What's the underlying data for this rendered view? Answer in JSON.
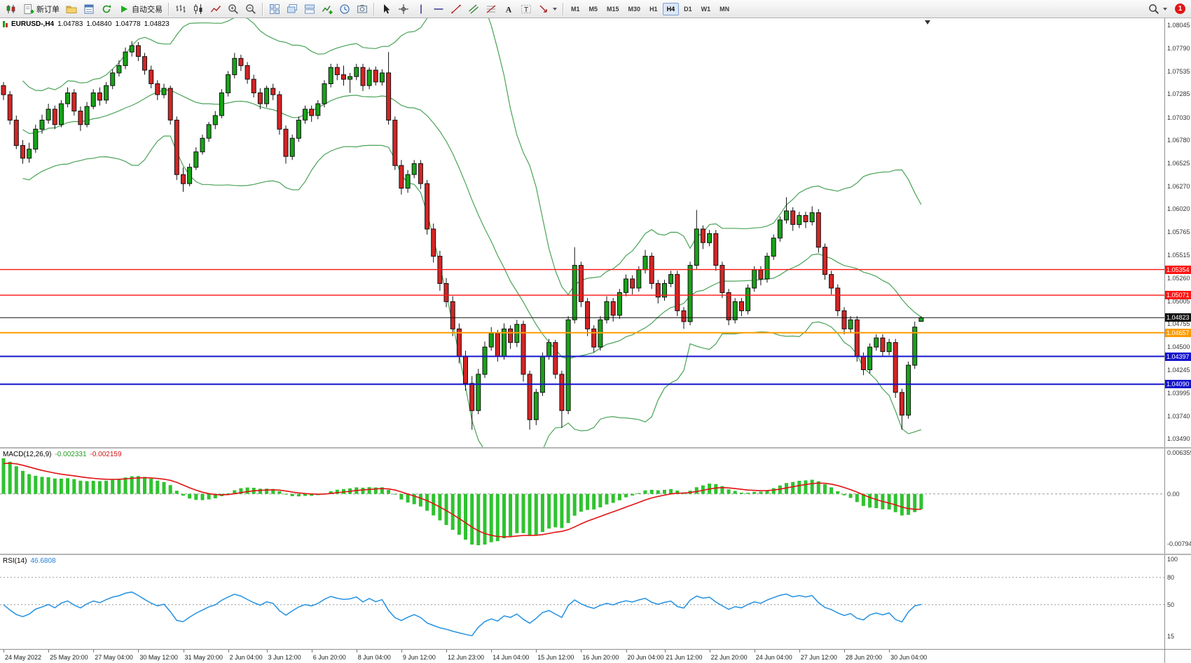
{
  "toolbar": {
    "file_group": [
      {
        "name": "new-chart-button",
        "icon": "chart-candles"
      },
      {
        "name": "new-order-button",
        "icon": "new-order",
        "label": "新订单"
      },
      {
        "name": "profiles-button",
        "icon": "profiles"
      },
      {
        "name": "data-window-button",
        "icon": "data-window"
      },
      {
        "name": "refresh-button",
        "icon": "refresh"
      },
      {
        "name": "auto-trading-button",
        "icon": "play",
        "label": "自动交易"
      }
    ],
    "chart_group": [
      {
        "name": "bar-chart-mode-button",
        "icon": "bar-chart"
      },
      {
        "name": "candlestick-mode-button",
        "icon": "candles"
      },
      {
        "name": "line-chart-mode-button",
        "icon": "line-chart"
      },
      {
        "name": "zoom-in-button",
        "icon": "zoom-in"
      },
      {
        "name": "zoom-out-button",
        "icon": "zoom-out"
      }
    ],
    "window_group": [
      {
        "name": "tile-windows-button",
        "icon": "tile"
      },
      {
        "name": "cascade-windows-button",
        "icon": "cascade"
      },
      {
        "name": "arrange-windows-button",
        "icon": "arrange"
      },
      {
        "name": "add-indicator-button",
        "icon": "add-indicator"
      },
      {
        "name": "time-periods-button",
        "icon": "clock"
      },
      {
        "name": "snapshot-button",
        "icon": "snapshot"
      }
    ],
    "tools_group": [
      {
        "name": "cursor-tool-button",
        "icon": "cursor"
      },
      {
        "name": "crosshair-tool-button",
        "icon": "crosshair"
      },
      {
        "name": "vertical-line-tool-button",
        "icon": "vline"
      },
      {
        "name": "horizontal-line-tool-button",
        "icon": "hline"
      },
      {
        "name": "trendline-tool-button",
        "icon": "trend"
      },
      {
        "name": "channel-tool-button",
        "icon": "channel"
      },
      {
        "name": "fibonacci-tool-button",
        "icon": "fibo"
      },
      {
        "name": "text-tool-button",
        "icon": "text"
      },
      {
        "name": "text-label-tool-button",
        "icon": "label"
      },
      {
        "name": "arrow-tools-button",
        "icon": "arrows",
        "caret": true
      }
    ],
    "timeframes": {
      "items": [
        "M1",
        "M5",
        "M15",
        "M30",
        "H1",
        "H4",
        "D1",
        "W1",
        "MN"
      ],
      "active": "H4"
    },
    "right": {
      "search_name": "search-button",
      "notification_count": "1"
    }
  },
  "chart": {
    "symbol_period": "EURUSD-,H4",
    "open": "1.04783",
    "high": "1.04840",
    "low": "1.04778",
    "close": "1.04823"
  },
  "chart_data": {
    "type": "candlestick",
    "symbol": "EURUSD-",
    "timeframe": "H4",
    "colors": {
      "up": "#18a318",
      "down": "#d42525",
      "wick": "#111111",
      "bollinger": "#49a357",
      "macd_hist": "#2fc32f",
      "macd_signal": "#e01212",
      "rsi": "#2491e2",
      "axis_text": "#222222"
    },
    "y_axis": {
      "min": 1.0349,
      "max": 1.08045,
      "ticks": [
        1.08045,
        1.0779,
        1.07535,
        1.07285,
        1.0703,
        1.0678,
        1.06525,
        1.0627,
        1.0602,
        1.05765,
        1.05515,
        1.0526,
        1.05005,
        1.04755,
        1.045,
        1.04245,
        1.03995,
        1.0374,
        1.0349
      ]
    },
    "hlines": [
      {
        "price": 1.05354,
        "color": "#ff1414",
        "width": 1.4
      },
      {
        "price": 1.05071,
        "color": "#ff1414",
        "width": 1.4
      },
      {
        "price": 1.04823,
        "color": "#111111",
        "width": 1
      },
      {
        "price": 1.04657,
        "color": "#ff9b00",
        "width": 2
      },
      {
        "price": 1.04397,
        "color": "#1414cc",
        "width": 2
      },
      {
        "price": 1.0409,
        "color": "#1414cc",
        "width": 2
      }
    ],
    "bollinger": {
      "period": 20,
      "deviation": 2
    },
    "macd": {
      "label": "MACD(12,26,9)",
      "main_value": "-0.002331",
      "signal_value": "-0.002159",
      "scale": {
        "max": 0.006359,
        "zero": "0.00",
        "min": -0.007949
      }
    },
    "rsi": {
      "label": "RSI(14)",
      "value": "46.6808",
      "scale_labels": [
        100,
        80,
        50,
        15
      ],
      "levels": [
        80,
        50
      ]
    },
    "time_labels": [
      {
        "i": 0,
        "t": "24 May 2022"
      },
      {
        "i": 7,
        "t": "25 May 20:00"
      },
      {
        "i": 14,
        "t": "27 May 04:00"
      },
      {
        "i": 21,
        "t": "30 May 12:00"
      },
      {
        "i": 28,
        "t": "31 May 20:00"
      },
      {
        "i": 35,
        "t": "2 Jun 04:00"
      },
      {
        "i": 41,
        "t": "3 Jun 12:00"
      },
      {
        "i": 48,
        "t": "6 Jun 20:00"
      },
      {
        "i": 55,
        "t": "8 Jun 04:00"
      },
      {
        "i": 62,
        "t": "9 Jun 12:00"
      },
      {
        "i": 69,
        "t": "12 Jun 23:00"
      },
      {
        "i": 76,
        "t": "14 Jun 04:00"
      },
      {
        "i": 83,
        "t": "15 Jun 12:00"
      },
      {
        "i": 90,
        "t": "16 Jun 20:00"
      },
      {
        "i": 97,
        "t": "20 Jun 04:00"
      },
      {
        "i": 103,
        "t": "21 Jun 12:00"
      },
      {
        "i": 110,
        "t": "22 Jun 20:00"
      },
      {
        "i": 117,
        "t": "24 Jun 04:00"
      },
      {
        "i": 124,
        "t": "27 Jun 12:00"
      },
      {
        "i": 131,
        "t": "28 Jun 20:00"
      },
      {
        "i": 138,
        "t": "30 Jun 04:00"
      }
    ],
    "candles": [
      [
        1.0738,
        1.0742,
        1.0722,
        1.0728
      ],
      [
        1.0728,
        1.0732,
        1.0695,
        1.07
      ],
      [
        1.07,
        1.0705,
        1.0668,
        1.0672
      ],
      [
        1.0672,
        1.0678,
        1.0652,
        1.0658
      ],
      [
        1.0658,
        1.0675,
        1.0653,
        1.0668
      ],
      [
        1.0668,
        1.0695,
        1.0664,
        1.069
      ],
      [
        1.069,
        1.0706,
        1.0685,
        1.07
      ],
      [
        1.07,
        1.0718,
        1.0696,
        1.0712
      ],
      [
        1.0712,
        1.0716,
        1.069,
        1.0695
      ],
      [
        1.0695,
        1.0722,
        1.0692,
        1.0718
      ],
      [
        1.0718,
        1.0736,
        1.0714,
        1.073
      ],
      [
        1.073,
        1.0734,
        1.0705,
        1.071
      ],
      [
        1.071,
        1.0715,
        1.0688,
        1.0695
      ],
      [
        1.0695,
        1.072,
        1.0692,
        1.0715
      ],
      [
        1.0715,
        1.0734,
        1.0712,
        1.073
      ],
      [
        1.073,
        1.0736,
        1.0716,
        1.0722
      ],
      [
        1.0722,
        1.0742,
        1.0718,
        1.0738
      ],
      [
        1.0738,
        1.0756,
        1.0734,
        1.0752
      ],
      [
        1.0752,
        1.0766,
        1.0748,
        1.076
      ],
      [
        1.076,
        1.078,
        1.0756,
        1.0775
      ],
      [
        1.0775,
        1.0787,
        1.077,
        1.0782
      ],
      [
        1.0782,
        1.0786,
        1.0765,
        1.077
      ],
      [
        1.077,
        1.0774,
        1.075,
        1.0755
      ],
      [
        1.0755,
        1.076,
        1.0735,
        1.074
      ],
      [
        1.074,
        1.0744,
        1.0722,
        1.0728
      ],
      [
        1.0728,
        1.074,
        1.0724,
        1.0735
      ],
      [
        1.0735,
        1.0738,
        1.0695,
        1.07
      ],
      [
        1.07,
        1.0704,
        1.0634,
        1.064
      ],
      [
        1.064,
        1.0648,
        1.0621,
        1.063
      ],
      [
        1.063,
        1.0652,
        1.0627,
        1.0648
      ],
      [
        1.0648,
        1.067,
        1.0645,
        1.0665
      ],
      [
        1.0665,
        1.0684,
        1.0662,
        1.068
      ],
      [
        1.068,
        1.0698,
        1.0676,
        1.0695
      ],
      [
        1.0695,
        1.071,
        1.069,
        1.0705
      ],
      [
        1.0705,
        1.0734,
        1.0702,
        1.073
      ],
      [
        1.073,
        1.0754,
        1.0726,
        1.075
      ],
      [
        1.075,
        1.0774,
        1.0746,
        1.0768
      ],
      [
        1.0768,
        1.0772,
        1.0754,
        1.076
      ],
      [
        1.076,
        1.0764,
        1.074,
        1.0745
      ],
      [
        1.0745,
        1.075,
        1.0725,
        1.073
      ],
      [
        1.073,
        1.0735,
        1.0712,
        1.0718
      ],
      [
        1.0718,
        1.0738,
        1.0714,
        1.0735
      ],
      [
        1.0735,
        1.074,
        1.0722,
        1.0728
      ],
      [
        1.0728,
        1.0732,
        1.0684,
        1.069
      ],
      [
        1.069,
        1.0694,
        1.0652,
        1.066
      ],
      [
        1.066,
        1.0684,
        1.0656,
        1.068
      ],
      [
        1.068,
        1.0704,
        1.0676,
        1.07
      ],
      [
        1.07,
        1.0716,
        1.0696,
        1.0712
      ],
      [
        1.0712,
        1.0716,
        1.0698,
        1.0705
      ],
      [
        1.0705,
        1.0722,
        1.0701,
        1.0718
      ],
      [
        1.0718,
        1.0744,
        1.0714,
        1.074
      ],
      [
        1.074,
        1.0762,
        1.0736,
        1.0758
      ],
      [
        1.0758,
        1.0762,
        1.0744,
        1.075
      ],
      [
        1.075,
        1.076,
        1.0738,
        1.0745
      ],
      [
        1.0745,
        1.0752,
        1.073,
        1.0748
      ],
      [
        1.0748,
        1.0762,
        1.0744,
        1.0758
      ],
      [
        1.0758,
        1.0762,
        1.0732,
        1.0738
      ],
      [
        1.0738,
        1.0758,
        1.0734,
        1.0755
      ],
      [
        1.0755,
        1.0759,
        1.0738,
        1.0742
      ],
      [
        1.0742,
        1.0756,
        1.0738,
        1.0752
      ],
      [
        1.0752,
        1.0775,
        1.0695,
        1.07
      ],
      [
        1.07,
        1.0704,
        1.0645,
        1.065
      ],
      [
        1.065,
        1.0656,
        1.0618,
        1.0625
      ],
      [
        1.0625,
        1.0645,
        1.062,
        1.064
      ],
      [
        1.064,
        1.0656,
        1.0636,
        1.0652
      ],
      [
        1.0652,
        1.0656,
        1.0624,
        1.063
      ],
      [
        1.063,
        1.0634,
        1.0574,
        1.058
      ],
      [
        1.058,
        1.0586,
        1.0543,
        1.055
      ],
      [
        1.055,
        1.0556,
        1.0512,
        1.052
      ],
      [
        1.052,
        1.0526,
        1.0494,
        1.05
      ],
      [
        1.05,
        1.0506,
        1.0462,
        1.047
      ],
      [
        1.047,
        1.0476,
        1.0432,
        1.044
      ],
      [
        1.044,
        1.0446,
        1.0402,
        1.041
      ],
      [
        1.041,
        1.0418,
        1.0359,
        1.038
      ],
      [
        1.038,
        1.0426,
        1.0376,
        1.042
      ],
      [
        1.042,
        1.0456,
        1.0416,
        1.045
      ],
      [
        1.045,
        1.0472,
        1.0446,
        1.0465
      ],
      [
        1.0465,
        1.0469,
        1.0434,
        1.044
      ],
      [
        1.044,
        1.0476,
        1.0436,
        1.047
      ],
      [
        1.047,
        1.0474,
        1.0448,
        1.0455
      ],
      [
        1.0455,
        1.048,
        1.045,
        1.0475
      ],
      [
        1.0475,
        1.0479,
        1.0412,
        1.042
      ],
      [
        1.042,
        1.0424,
        1.0359,
        1.037
      ],
      [
        1.037,
        1.0404,
        1.0364,
        1.04
      ],
      [
        1.04,
        1.0444,
        1.0396,
        1.044
      ],
      [
        1.044,
        1.0459,
        1.0436,
        1.0455
      ],
      [
        1.0455,
        1.0458,
        1.0415,
        1.042
      ],
      [
        1.042,
        1.0424,
        1.0361,
        1.038
      ],
      [
        1.038,
        1.0484,
        1.0376,
        1.048
      ],
      [
        1.048,
        1.056,
        1.0476,
        1.054
      ],
      [
        1.054,
        1.0544,
        1.0494,
        1.05
      ],
      [
        1.05,
        1.0504,
        1.0462,
        1.047
      ],
      [
        1.047,
        1.0474,
        1.0444,
        1.045
      ],
      [
        1.045,
        1.0484,
        1.0446,
        1.048
      ],
      [
        1.048,
        1.0506,
        1.0476,
        1.05
      ],
      [
        1.05,
        1.0504,
        1.0478,
        1.0485
      ],
      [
        1.0485,
        1.0514,
        1.0481,
        1.051
      ],
      [
        1.051,
        1.053,
        1.0506,
        1.0525
      ],
      [
        1.0525,
        1.0529,
        1.0508,
        1.0515
      ],
      [
        1.0515,
        1.0539,
        1.0511,
        1.0535
      ],
      [
        1.0535,
        1.0557,
        1.0531,
        1.055
      ],
      [
        1.055,
        1.0554,
        1.0514,
        1.052
      ],
      [
        1.052,
        1.0524,
        1.0498,
        1.0505
      ],
      [
        1.0505,
        1.0524,
        1.0501,
        1.052
      ],
      [
        1.052,
        1.0534,
        1.0516,
        1.053
      ],
      [
        1.053,
        1.0534,
        1.0484,
        1.049
      ],
      [
        1.049,
        1.0494,
        1.047,
        1.0478
      ],
      [
        1.0478,
        1.0544,
        1.0474,
        1.054
      ],
      [
        1.054,
        1.0601,
        1.0536,
        1.058
      ],
      [
        1.058,
        1.0584,
        1.0558,
        1.0565
      ],
      [
        1.0565,
        1.0579,
        1.0561,
        1.0575
      ],
      [
        1.0575,
        1.0579,
        1.0534,
        1.054
      ],
      [
        1.054,
        1.0544,
        1.0504,
        1.051
      ],
      [
        1.051,
        1.0514,
        1.0474,
        1.048
      ],
      [
        1.048,
        1.0504,
        1.0476,
        1.05
      ],
      [
        1.05,
        1.0504,
        1.0484,
        1.049
      ],
      [
        1.049,
        1.0519,
        1.0486,
        1.0515
      ],
      [
        1.0515,
        1.0539,
        1.0511,
        1.0535
      ],
      [
        1.0535,
        1.0539,
        1.0518,
        1.0525
      ],
      [
        1.0525,
        1.0554,
        1.0521,
        1.055
      ],
      [
        1.055,
        1.0574,
        1.0546,
        1.057
      ],
      [
        1.057,
        1.0594,
        1.0566,
        1.059
      ],
      [
        1.059,
        1.0615,
        1.0586,
        1.06
      ],
      [
        1.06,
        1.0604,
        1.0578,
        1.0585
      ],
      [
        1.0585,
        1.0599,
        1.0581,
        1.0595
      ],
      [
        1.0595,
        1.0599,
        1.0581,
        1.0588
      ],
      [
        1.0588,
        1.0605,
        1.0584,
        1.0598
      ],
      [
        1.0598,
        1.0602,
        1.0554,
        1.056
      ],
      [
        1.056,
        1.0564,
        1.0524,
        1.053
      ],
      [
        1.053,
        1.0534,
        1.0508,
        1.0515
      ],
      [
        1.0515,
        1.0519,
        1.0484,
        1.049
      ],
      [
        1.049,
        1.0494,
        1.0464,
        1.047
      ],
      [
        1.047,
        1.0484,
        1.0466,
        1.048
      ],
      [
        1.048,
        1.0484,
        1.0434,
        1.044
      ],
      [
        1.044,
        1.0444,
        1.0419,
        1.0425
      ],
      [
        1.0425,
        1.0454,
        1.0421,
        1.045
      ],
      [
        1.045,
        1.0464,
        1.0446,
        1.046
      ],
      [
        1.046,
        1.0464,
        1.0439,
        1.0445
      ],
      [
        1.0445,
        1.0459,
        1.0441,
        1.0455
      ],
      [
        1.0455,
        1.0459,
        1.0394,
        1.04
      ],
      [
        1.04,
        1.0404,
        1.0359,
        1.0375
      ],
      [
        1.0375,
        1.0434,
        1.0371,
        1.043
      ],
      [
        1.043,
        1.0478,
        1.0426,
        1.0472
      ],
      [
        1.04783,
        1.0484,
        1.04778,
        1.04823
      ]
    ]
  }
}
